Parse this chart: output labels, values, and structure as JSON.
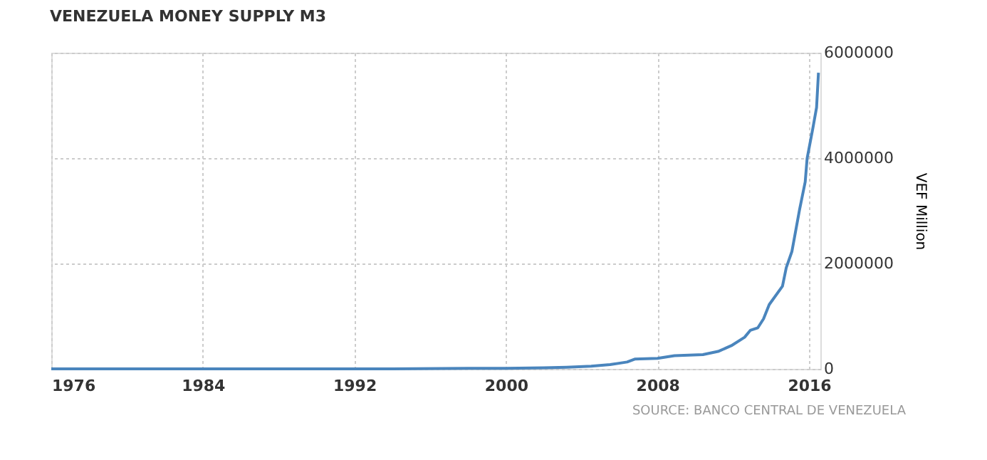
{
  "chart_data": {
    "type": "line",
    "title": "VENEZUELA MONEY SUPPLY M3",
    "ylabel": "VEF Million",
    "annotations": [
      "SOURCE: BANCO CENTRAL DE VENEZUELA"
    ],
    "series": [
      {
        "color": "#4a85bd",
        "x": [
          1976,
          1980,
          1985,
          1990,
          1994,
          1998,
          2000,
          2002,
          2003.2,
          2004.5,
          2005.5,
          2006.4,
          2006.8,
          2008,
          2008.9,
          2010.4,
          2011.2,
          2011.9,
          2012.6,
          2012.9,
          2013.3,
          2013.6,
          2013.9,
          2014.6,
          2014.8,
          2015.1,
          2015.5,
          2015.8,
          2015.9,
          2016.2,
          2016.4,
          2016.5
        ],
        "values": [
          0,
          0,
          0,
          0,
          0,
          10000,
          10000,
          20000,
          30000,
          50000,
          80000,
          130000,
          185000,
          200000,
          250000,
          270000,
          330000,
          440000,
          600000,
          730000,
          780000,
          950000,
          1220000,
          1570000,
          1920000,
          2230000,
          3020000,
          3550000,
          3990000,
          4560000,
          4960000,
          5620000
        ]
      }
    ],
    "xlim": [
      1976,
      2016.6
    ],
    "xticks": [
      1976,
      1984,
      1992,
      2000,
      2008,
      2016
    ],
    "ylim": [
      0,
      6000000
    ],
    "yticks": [
      0,
      2000000,
      4000000,
      6000000
    ],
    "grid": true,
    "line_style": "solid",
    "marker": "none",
    "legend": false
  }
}
